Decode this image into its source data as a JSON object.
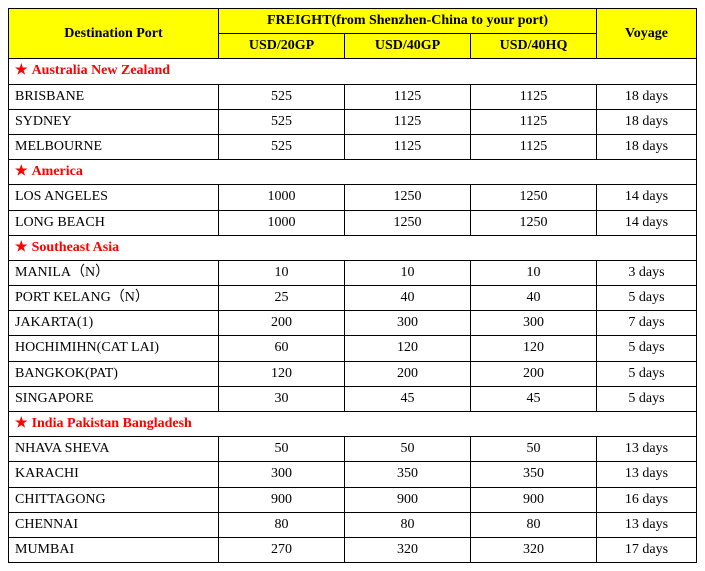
{
  "header": {
    "destination": "Destination Port",
    "freight_group": "FREIGHT(from Shenzhen-China to your port)",
    "usd20gp": "USD/20GP",
    "usd40gp": "USD/40GP",
    "usd40hq": "USD/40HQ",
    "voyage": "Voyage"
  },
  "colors": {
    "header_bg": "#ffff00",
    "border": "#000000",
    "region_text": "#ff0000",
    "body_text": "#000000",
    "background": "#ffffff"
  },
  "sections": [
    {
      "region": "Australia New Zealand",
      "rows": [
        {
          "port": "BRISBANE",
          "c20": "525",
          "c40": "1125",
          "c40hq": "1125",
          "voyage": "18 days"
        },
        {
          "port": "SYDNEY",
          "c20": "525",
          "c40": "1125",
          "c40hq": "1125",
          "voyage": "18 days"
        },
        {
          "port": "MELBOURNE",
          "c20": "525",
          "c40": "1125",
          "c40hq": "1125",
          "voyage": "18 days"
        }
      ]
    },
    {
      "region": "America",
      "rows": [
        {
          "port": "LOS ANGELES",
          "c20": "1000",
          "c40": "1250",
          "c40hq": "1250",
          "voyage": "14 days"
        },
        {
          "port": "LONG BEACH",
          "c20": "1000",
          "c40": "1250",
          "c40hq": "1250",
          "voyage": "14 days"
        }
      ]
    },
    {
      "region": "Southeast Asia",
      "rows": [
        {
          "port": "MANILA（N）",
          "c20": "10",
          "c40": "10",
          "c40hq": "10",
          "voyage": "3 days"
        },
        {
          "port": "PORT KELANG（N）",
          "c20": "25",
          "c40": "40",
          "c40hq": "40",
          "voyage": "5 days"
        },
        {
          "port": "JAKARTA(1)",
          "c20": "200",
          "c40": "300",
          "c40hq": "300",
          "voyage": "7 days"
        },
        {
          "port": "HOCHIMIHN(CAT LAI)",
          "c20": "60",
          "c40": "120",
          "c40hq": "120",
          "voyage": "5 days"
        },
        {
          "port": "BANGKOK(PAT)",
          "c20": "120",
          "c40": "200",
          "c40hq": "200",
          "voyage": "5 days"
        },
        {
          "port": "SINGAPORE",
          "c20": "30",
          "c40": "45",
          "c40hq": "45",
          "voyage": "5 days"
        }
      ]
    },
    {
      "region": "India Pakistan Bangladesh",
      "rows": [
        {
          "port": "NHAVA SHEVA",
          "c20": "50",
          "c40": "50",
          "c40hq": "50",
          "voyage": "13 days"
        },
        {
          "port": "KARACHI",
          "c20": "300",
          "c40": "350",
          "c40hq": "350",
          "voyage": "13 days"
        },
        {
          "port": "CHITTAGONG",
          "c20": "900",
          "c40": "900",
          "c40hq": "900",
          "voyage": "16 days"
        },
        {
          "port": "CHENNAI",
          "c20": "80",
          "c40": "80",
          "c40hq": "80",
          "voyage": "13 days"
        },
        {
          "port": "MUMBAI",
          "c20": "270",
          "c40": "320",
          "c40hq": "320",
          "voyage": "17 days"
        }
      ]
    }
  ]
}
